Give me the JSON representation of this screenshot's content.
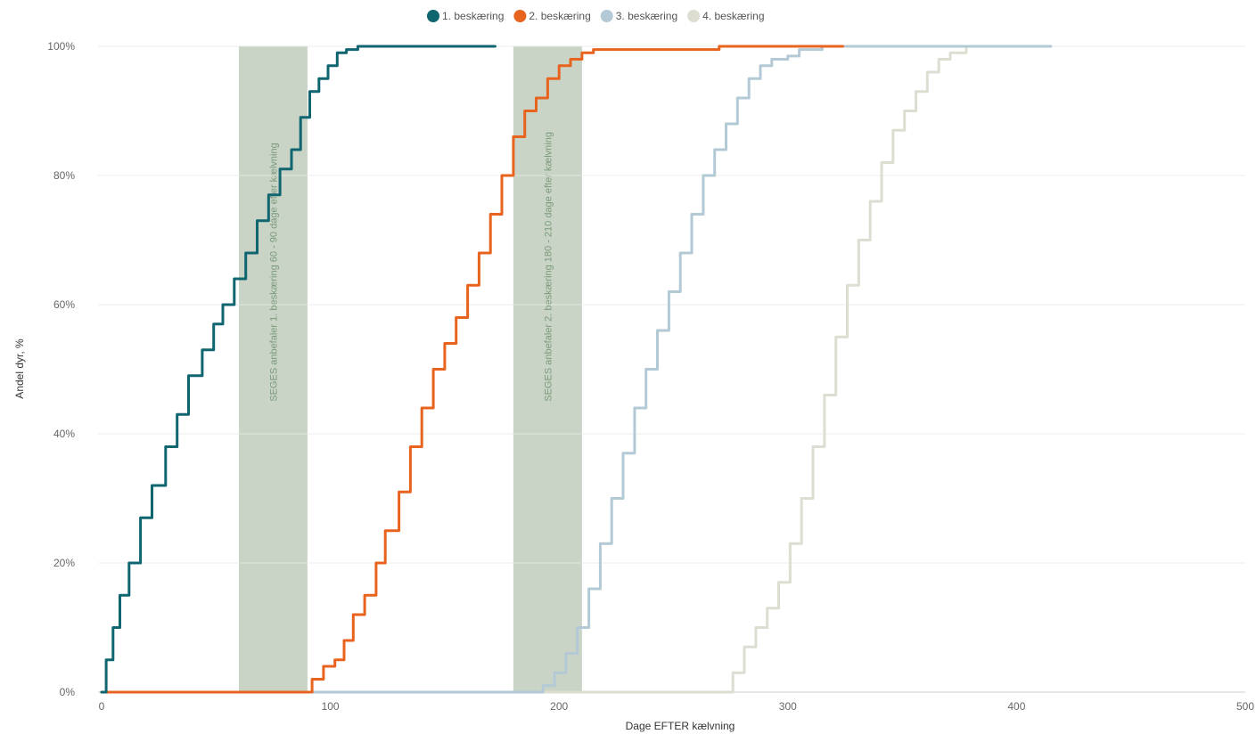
{
  "chart_data": {
    "type": "line",
    "title": "",
    "xlabel": "Dage EFTER kælvning",
    "ylabel": "Andel dyr, %",
    "xlim": [
      0,
      500
    ],
    "ylim": [
      0,
      100
    ],
    "x_ticks": [
      "0",
      "100",
      "200",
      "300",
      "400",
      "500"
    ],
    "x_tick_values": [
      0,
      100,
      200,
      300,
      400,
      500
    ],
    "y_ticks": [
      "0%",
      "20%",
      "40%",
      "60%",
      "80%",
      "100%"
    ],
    "y_tick_values": [
      0,
      20,
      40,
      60,
      80,
      100
    ],
    "grid": true,
    "legend_position": "top-center",
    "bands": [
      {
        "x_start": 60,
        "x_end": 90,
        "label": "SEGES anbefaler 1. beskæring 60 - 90 dage efter kælvning",
        "color": "#c9d4c6"
      },
      {
        "x_start": 180,
        "x_end": 210,
        "label": "SEGES anbefaler 2. beskæring 180 - 210 dage efter kælvning",
        "color": "#c9d4c6"
      }
    ],
    "series": [
      {
        "name": "1. beskæring",
        "color": "#0f6570",
        "points": [
          [
            0,
            0
          ],
          [
            2,
            5
          ],
          [
            5,
            10
          ],
          [
            8,
            15
          ],
          [
            12,
            20
          ],
          [
            17,
            27
          ],
          [
            22,
            32
          ],
          [
            28,
            38
          ],
          [
            33,
            43
          ],
          [
            38,
            49
          ],
          [
            44,
            53
          ],
          [
            49,
            57
          ],
          [
            53,
            60
          ],
          [
            58,
            64
          ],
          [
            63,
            68
          ],
          [
            68,
            73
          ],
          [
            73,
            77
          ],
          [
            78,
            81
          ],
          [
            83,
            84
          ],
          [
            87,
            89
          ],
          [
            91,
            93
          ],
          [
            95,
            95
          ],
          [
            99,
            97
          ],
          [
            103,
            99
          ],
          [
            107,
            99.5
          ],
          [
            112,
            100
          ],
          [
            140,
            100
          ],
          [
            172,
            100
          ]
        ]
      },
      {
        "name": "2. beskæring",
        "color": "#e8641e",
        "points": [
          [
            0,
            0
          ],
          [
            90,
            0
          ],
          [
            92,
            2
          ],
          [
            95,
            2
          ],
          [
            97,
            4
          ],
          [
            102,
            5
          ],
          [
            106,
            8
          ],
          [
            110,
            12
          ],
          [
            115,
            15
          ],
          [
            120,
            20
          ],
          [
            124,
            25
          ],
          [
            130,
            31
          ],
          [
            135,
            38
          ],
          [
            140,
            44
          ],
          [
            145,
            50
          ],
          [
            150,
            54
          ],
          [
            155,
            58
          ],
          [
            160,
            63
          ],
          [
            165,
            68
          ],
          [
            170,
            74
          ],
          [
            175,
            80
          ],
          [
            180,
            86
          ],
          [
            185,
            90
          ],
          [
            190,
            92
          ],
          [
            195,
            95
          ],
          [
            200,
            97
          ],
          [
            205,
            98
          ],
          [
            210,
            99
          ],
          [
            215,
            99.5
          ],
          [
            260,
            99.5
          ],
          [
            270,
            100
          ],
          [
            324,
            100
          ]
        ]
      },
      {
        "name": "3. beskæring",
        "color": "#b3cad6",
        "points": [
          [
            0,
            0
          ],
          [
            188,
            0
          ],
          [
            193,
            1
          ],
          [
            198,
            3
          ],
          [
            203,
            6
          ],
          [
            208,
            10
          ],
          [
            213,
            16
          ],
          [
            218,
            23
          ],
          [
            223,
            30
          ],
          [
            228,
            37
          ],
          [
            233,
            44
          ],
          [
            238,
            50
          ],
          [
            243,
            56
          ],
          [
            248,
            62
          ],
          [
            253,
            68
          ],
          [
            258,
            74
          ],
          [
            263,
            80
          ],
          [
            268,
            84
          ],
          [
            273,
            88
          ],
          [
            278,
            92
          ],
          [
            283,
            95
          ],
          [
            288,
            97
          ],
          [
            293,
            98
          ],
          [
            300,
            98.5
          ],
          [
            305,
            99.5
          ],
          [
            315,
            100
          ],
          [
            360,
            100
          ],
          [
            415,
            100
          ]
        ]
      },
      {
        "name": "4. beskæring",
        "color": "#deddd2",
        "points": [
          [
            0,
            0
          ],
          [
            271,
            0
          ],
          [
            276,
            3
          ],
          [
            281,
            7
          ],
          [
            286,
            10
          ],
          [
            291,
            13
          ],
          [
            296,
            17
          ],
          [
            301,
            23
          ],
          [
            306,
            30
          ],
          [
            311,
            38
          ],
          [
            316,
            46
          ],
          [
            321,
            55
          ],
          [
            326,
            63
          ],
          [
            331,
            70
          ],
          [
            336,
            76
          ],
          [
            341,
            82
          ],
          [
            346,
            87
          ],
          [
            351,
            90
          ],
          [
            356,
            93
          ],
          [
            361,
            96
          ],
          [
            366,
            98
          ],
          [
            371,
            99
          ],
          [
            378,
            100
          ],
          [
            392,
            100
          ]
        ]
      }
    ]
  }
}
